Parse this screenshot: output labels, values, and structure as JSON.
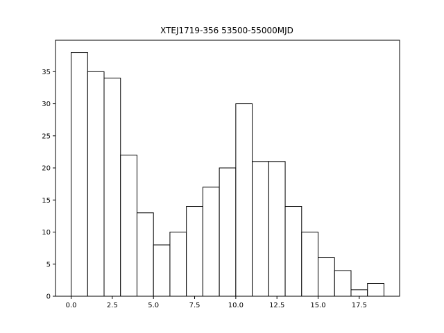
{
  "chart_data": {
    "type": "bar",
    "title": "XTEJ1719-356 53500-55000MJD",
    "xlabel": "",
    "ylabel": "",
    "bin_edges": [
      0.0,
      1.0,
      2.0,
      3.0,
      4.0,
      5.0,
      6.0,
      7.0,
      8.0,
      9.0,
      10.0,
      11.0,
      12.0,
      13.0,
      14.0,
      15.0,
      16.0,
      17.0,
      18.0,
      19.0
    ],
    "values": [
      38,
      35,
      34,
      22,
      13,
      8,
      10,
      14,
      17,
      20,
      30,
      21,
      21,
      14,
      10,
      6,
      4,
      1,
      2
    ],
    "xlim": [
      -0.95,
      19.95
    ],
    "ylim": [
      0,
      39.9
    ],
    "xticks": [
      0.0,
      2.5,
      5.0,
      7.5,
      10.0,
      12.5,
      15.0,
      17.5
    ],
    "xtick_labels": [
      "0.0",
      "2.5",
      "5.0",
      "7.5",
      "10.0",
      "12.5",
      "15.0",
      "17.5"
    ],
    "yticks": [
      0,
      5,
      10,
      15,
      20,
      25,
      30,
      35
    ],
    "ytick_labels": [
      "0",
      "5",
      "10",
      "15",
      "20",
      "25",
      "30",
      "35"
    ],
    "bar_fill": "#ffffff",
    "bar_edge": "#000000",
    "grid": false,
    "legend": "none"
  }
}
